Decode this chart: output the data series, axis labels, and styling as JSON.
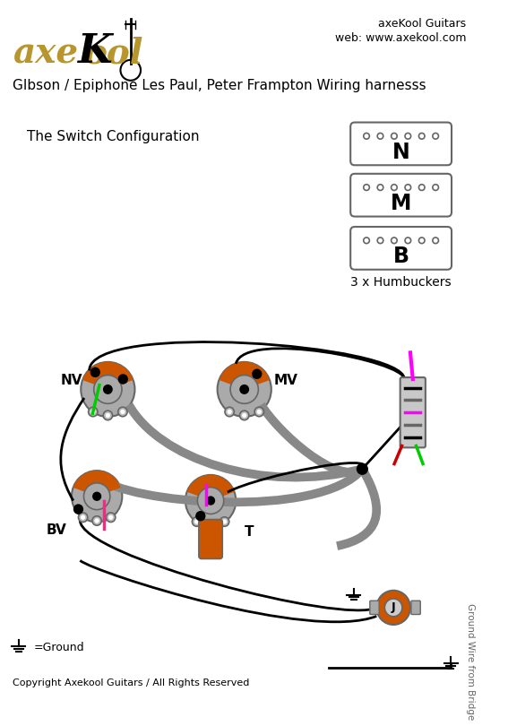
{
  "title": "GIbson / Epiphone Les Paul, Peter Frampton Wiring harnesss",
  "subtitle": "The Switch Configuration",
  "brand_line1": "axeKool Guitars",
  "brand_line2": "web: www.axekool.com",
  "humbuckers_label": "3 x Humbuckers",
  "humbucker_labels": [
    "N",
    "M",
    "B"
  ],
  "copyright": "Copyright Axekool Guitars / All Rights Reserved",
  "ground_label": "=Ground",
  "ground_bridge_label": "Ground Wire from Bridge",
  "bg_color": "#ffffff",
  "gray_pot": "#aaaaaa",
  "dark_gray": "#666666",
  "med_gray": "#999999",
  "orange_color": "#cc5500",
  "black": "#000000",
  "green": "#00cc00",
  "red": "#cc0000",
  "magenta": "#ff00ff",
  "pink": "#ff2288",
  "gold": "#b8962e",
  "wire_gray": "#888888",
  "lug_gray": "#bbbbbb"
}
